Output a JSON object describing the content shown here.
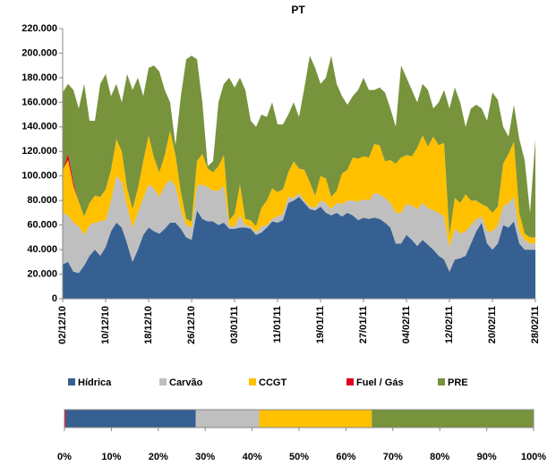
{
  "chart_data": [
    {
      "type": "stacked-area",
      "title": "PT",
      "categories": [
        "02/12/10",
        null,
        null,
        null,
        null,
        null,
        null,
        null,
        "10/12/10",
        null,
        null,
        null,
        null,
        null,
        null,
        null,
        "18/12/10",
        null,
        null,
        null,
        null,
        null,
        null,
        null,
        "26/12/10",
        null,
        null,
        null,
        null,
        null,
        null,
        null,
        "03/01/11",
        null,
        null,
        null,
        null,
        null,
        null,
        null,
        "11/01/11",
        null,
        null,
        null,
        null,
        null,
        null,
        null,
        "19/01/11",
        null,
        null,
        null,
        null,
        null,
        null,
        null,
        "27/01/11",
        null,
        null,
        null,
        null,
        null,
        null,
        null,
        "04/02/11",
        null,
        null,
        null,
        null,
        null,
        null,
        null,
        "12/02/11",
        null,
        null,
        null,
        null,
        null,
        null,
        null,
        "20/02/11",
        null,
        null,
        null,
        null,
        null,
        null,
        null,
        "28/02/11"
      ],
      "series": [
        {
          "name": "Hídrica",
          "color": "#376092",
          "values": [
            28000,
            30000,
            22000,
            21000,
            27000,
            35000,
            40000,
            35000,
            42000,
            55000,
            62000,
            58000,
            45000,
            30000,
            40000,
            52000,
            58000,
            55000,
            53000,
            57000,
            62000,
            62000,
            57000,
            50000,
            48000,
            72000,
            65000,
            63000,
            63000,
            60000,
            62000,
            57000,
            57000,
            58000,
            58000,
            57000,
            52000,
            54000,
            58000,
            63000,
            62000,
            64000,
            78000,
            80000,
            83000,
            78000,
            73000,
            72000,
            75000,
            70000,
            68000,
            70000,
            67000,
            70000,
            68000,
            64000,
            66000,
            65000,
            66000,
            65000,
            62000,
            58000,
            45000,
            45000,
            52000,
            48000,
            43000,
            48000,
            44000,
            40000,
            35000,
            32000,
            22000,
            32000,
            33000,
            35000,
            45000,
            55000,
            62000,
            45000,
            40000,
            45000,
            60000,
            58000,
            63000,
            45000,
            40000,
            40000,
            40000
          ]
        },
        {
          "name": "Carvão",
          "color": "#bfbfbf",
          "values": [
            42000,
            38000,
            40000,
            38000,
            25000,
            25000,
            22000,
            28000,
            22000,
            25000,
            38000,
            37000,
            30000,
            28000,
            30000,
            30000,
            35000,
            35000,
            30000,
            35000,
            35000,
            30000,
            15000,
            10000,
            10000,
            20000,
            28000,
            28000,
            25000,
            28000,
            30000,
            2000,
            2000,
            10000,
            2000,
            2000,
            2000,
            5000,
            2000,
            2000,
            5000,
            5000,
            5000,
            2000,
            3000,
            2000,
            2000,
            2000,
            5000,
            8000,
            5000,
            8000,
            10000,
            10000,
            12000,
            15000,
            15000,
            15000,
            20000,
            20000,
            20000,
            20000,
            25000,
            25000,
            25000,
            28000,
            30000,
            30000,
            30000,
            32000,
            35000,
            35000,
            20000,
            25000,
            20000,
            20000,
            15000,
            10000,
            5000,
            10000,
            15000,
            15000,
            15000,
            20000,
            20000,
            10000,
            8000,
            5000,
            5000
          ]
        },
        {
          "name": "CCGT",
          "color": "#ffc000",
          "values": [
            35000,
            45000,
            30000,
            20000,
            15000,
            18000,
            22000,
            20000,
            25000,
            25000,
            30000,
            25000,
            15000,
            15000,
            20000,
            30000,
            40000,
            25000,
            20000,
            25000,
            40000,
            25000,
            15000,
            5000,
            5000,
            20000,
            25000,
            15000,
            15000,
            20000,
            25000,
            5000,
            10000,
            25000,
            5000,
            5000,
            5000,
            15000,
            20000,
            25000,
            20000,
            20000,
            20000,
            30000,
            20000,
            25000,
            20000,
            10000,
            20000,
            20000,
            10000,
            10000,
            25000,
            25000,
            35000,
            35000,
            35000,
            35000,
            40000,
            40000,
            30000,
            35000,
            40000,
            45000,
            40000,
            40000,
            50000,
            55000,
            50000,
            60000,
            55000,
            60000,
            10000,
            25000,
            25000,
            30000,
            20000,
            15000,
            10000,
            20000,
            15000,
            15000,
            35000,
            40000,
            45000,
            15000,
            5000,
            5000,
            5000
          ]
        },
        {
          "name": "Fuel / Gás",
          "color": "#e0001b",
          "values": [
            0,
            5000,
            3000,
            0,
            0,
            0,
            0,
            0,
            0,
            0,
            0,
            0,
            0,
            0,
            0,
            0,
            0,
            0,
            0,
            0,
            0,
            0,
            0,
            0,
            0,
            0,
            0,
            0,
            0,
            0,
            0,
            0,
            0,
            0,
            0,
            0,
            0,
            0,
            0,
            0,
            0,
            0,
            0,
            0,
            0,
            0,
            0,
            0,
            0,
            0,
            0,
            0,
            0,
            0,
            0,
            0,
            0,
            0,
            0,
            0,
            0,
            0,
            0,
            0,
            0,
            0,
            0,
            0,
            0,
            0,
            0,
            0,
            0,
            0,
            0,
            0,
            0,
            0,
            0,
            0,
            0,
            0,
            0,
            0,
            0,
            0,
            0,
            0,
            0
          ]
        },
        {
          "name": "PRE",
          "color": "#77933c",
          "values": [
            63000,
            57000,
            75000,
            76000,
            108000,
            67000,
            61000,
            92000,
            94000,
            60000,
            45000,
            40000,
            93000,
            97000,
            90000,
            53000,
            55000,
            75000,
            82000,
            53000,
            23000,
            8000,
            78000,
            130000,
            135000,
            83000,
            42000,
            2000,
            9000,
            52000,
            58000,
            116000,
            103000,
            87000,
            105000,
            81000,
            81000,
            76000,
            68000,
            70000,
            55000,
            53000,
            47000,
            48000,
            42000,
            67000,
            103000,
            104000,
            75000,
            82000,
            115000,
            87000,
            63000,
            53000,
            50000,
            56000,
            64000,
            55000,
            44000,
            47000,
            56000,
            42000,
            30000,
            75000,
            63000,
            54000,
            37000,
            42000,
            46000,
            23000,
            35000,
            43000,
            103000,
            90000,
            82000,
            55000,
            75000,
            78000,
            78000,
            70000,
            98000,
            87000,
            30000,
            14000,
            30000,
            60000,
            60000,
            20000,
            80000
          ]
        }
      ],
      "ylim": [
        0,
        220000
      ],
      "yticks": [
        {
          "value": 0,
          "label": "0"
        },
        {
          "value": 20000,
          "label": "20.000"
        },
        {
          "value": 40000,
          "label": "40.000"
        },
        {
          "value": 60000,
          "label": "60.000"
        },
        {
          "value": 80000,
          "label": "80.000"
        },
        {
          "value": 100000,
          "label": "100.000"
        },
        {
          "value": 120000,
          "label": "120.000"
        },
        {
          "value": 140000,
          "label": "140.000"
        },
        {
          "value": 160000,
          "label": "160.000"
        },
        {
          "value": 180000,
          "label": "180.000"
        },
        {
          "value": 200000,
          "label": "200.000"
        },
        {
          "value": 220000,
          "label": "220.000"
        }
      ],
      "legend": "bottom"
    },
    {
      "type": "stacked-bar-100",
      "values": [
        0.3,
        27.7,
        13.5,
        24,
        34.5
      ],
      "colors": [
        "#e0001b",
        "#376092",
        "#bfbfbf",
        "#ffc000",
        "#77933c"
      ],
      "xlim": [
        0,
        100
      ],
      "xticks": [
        {
          "value": 0,
          "label": "0%"
        },
        {
          "value": 10,
          "label": "10%"
        },
        {
          "value": 20,
          "label": "20%"
        },
        {
          "value": 30,
          "label": "30%"
        },
        {
          "value": 40,
          "label": "40%"
        },
        {
          "value": 50,
          "label": "50%"
        },
        {
          "value": 60,
          "label": "60%"
        },
        {
          "value": 70,
          "label": "70%"
        },
        {
          "value": 80,
          "label": "80%"
        },
        {
          "value": 90,
          "label": "90%"
        },
        {
          "value": 100,
          "label": "100%"
        }
      ]
    }
  ]
}
